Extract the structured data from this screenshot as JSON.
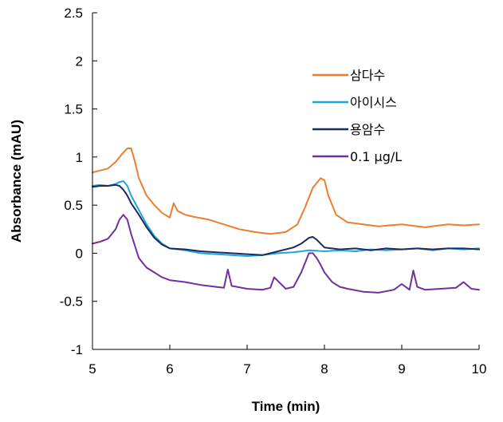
{
  "chart_data": {
    "type": "line",
    "xlabel": "Time (min)",
    "ylabel": "Absorbance (mAU)",
    "xlim": [
      5,
      10
    ],
    "ylim": [
      -1,
      2.5
    ],
    "xticks": [
      5,
      6,
      7,
      8,
      9,
      10
    ],
    "yticks": [
      -1,
      -0.5,
      0,
      0.5,
      1,
      1.5,
      2,
      2.5
    ],
    "xtick_labels": [
      "5",
      "6",
      "7",
      "8",
      "9",
      "10"
    ],
    "ytick_labels": [
      "-1",
      "-0.5",
      "0",
      "0.5",
      "1",
      "1.5",
      "2",
      "2.5"
    ],
    "grid": false,
    "legend_position": "top-right",
    "series": [
      {
        "name": "삼다수",
        "color": "#ED7D31",
        "x": [
          5.0,
          5.1,
          5.2,
          5.3,
          5.38,
          5.45,
          5.5,
          5.55,
          5.6,
          5.7,
          5.8,
          5.9,
          6.0,
          6.05,
          6.1,
          6.2,
          6.3,
          6.5,
          6.7,
          6.9,
          7.1,
          7.3,
          7.5,
          7.65,
          7.75,
          7.85,
          7.95,
          8.0,
          8.05,
          8.15,
          8.3,
          8.5,
          8.7,
          9.0,
          9.3,
          9.6,
          9.8,
          10.0
        ],
        "y": [
          0.84,
          0.86,
          0.88,
          0.95,
          1.03,
          1.09,
          1.09,
          0.95,
          0.78,
          0.6,
          0.5,
          0.42,
          0.37,
          0.52,
          0.44,
          0.4,
          0.38,
          0.35,
          0.3,
          0.25,
          0.22,
          0.2,
          0.22,
          0.3,
          0.48,
          0.68,
          0.78,
          0.76,
          0.6,
          0.4,
          0.32,
          0.3,
          0.28,
          0.3,
          0.27,
          0.3,
          0.29,
          0.3
        ]
      },
      {
        "name": "아이시스",
        "color": "#1FA4DB",
        "x": [
          5.0,
          5.1,
          5.2,
          5.3,
          5.35,
          5.4,
          5.45,
          5.5,
          5.6,
          5.7,
          5.8,
          5.9,
          6.0,
          6.2,
          6.4,
          6.6,
          6.8,
          7.0,
          7.2,
          7.4,
          7.6,
          7.8,
          8.0,
          8.2,
          8.4,
          8.6,
          8.8,
          9.0,
          9.2,
          9.4,
          9.6,
          9.8,
          10.0
        ],
        "y": [
          0.7,
          0.71,
          0.7,
          0.72,
          0.74,
          0.75,
          0.7,
          0.6,
          0.45,
          0.3,
          0.18,
          0.1,
          0.05,
          0.03,
          0.0,
          -0.01,
          -0.02,
          -0.03,
          -0.02,
          0.0,
          0.01,
          0.03,
          0.02,
          0.03,
          0.02,
          0.04,
          0.03,
          0.04,
          0.05,
          0.03,
          0.05,
          0.04,
          0.05
        ]
      },
      {
        "name": "용암수",
        "color": "#1A2B5C",
        "x": [
          5.0,
          5.1,
          5.2,
          5.3,
          5.35,
          5.4,
          5.45,
          5.5,
          5.6,
          5.7,
          5.8,
          5.9,
          6.0,
          6.2,
          6.4,
          6.6,
          6.8,
          7.0,
          7.2,
          7.4,
          7.6,
          7.7,
          7.8,
          7.85,
          7.9,
          7.95,
          8.0,
          8.2,
          8.4,
          8.6,
          8.8,
          9.0,
          9.2,
          9.4,
          9.6,
          9.8,
          10.0
        ],
        "y": [
          0.69,
          0.7,
          0.7,
          0.71,
          0.7,
          0.66,
          0.6,
          0.52,
          0.4,
          0.27,
          0.16,
          0.09,
          0.05,
          0.04,
          0.02,
          0.01,
          0.0,
          -0.01,
          -0.02,
          0.02,
          0.06,
          0.1,
          0.16,
          0.17,
          0.14,
          0.1,
          0.06,
          0.04,
          0.05,
          0.03,
          0.05,
          0.04,
          0.05,
          0.04,
          0.05,
          0.05,
          0.04
        ]
      },
      {
        "name": "0.1 μg/L",
        "color": "#7030A0",
        "x": [
          5.0,
          5.1,
          5.2,
          5.3,
          5.35,
          5.4,
          5.45,
          5.5,
          5.6,
          5.7,
          5.8,
          5.9,
          6.0,
          6.2,
          6.4,
          6.6,
          6.7,
          6.75,
          6.8,
          7.0,
          7.2,
          7.3,
          7.35,
          7.5,
          7.6,
          7.7,
          7.8,
          7.85,
          7.9,
          7.95,
          8.0,
          8.1,
          8.2,
          8.3,
          8.5,
          8.7,
          8.9,
          9.0,
          9.1,
          9.15,
          9.2,
          9.3,
          9.5,
          9.7,
          9.8,
          9.9,
          10.0
        ],
        "y": [
          0.1,
          0.12,
          0.15,
          0.25,
          0.35,
          0.4,
          0.35,
          0.2,
          -0.05,
          -0.15,
          -0.2,
          -0.25,
          -0.28,
          -0.3,
          -0.33,
          -0.35,
          -0.36,
          -0.17,
          -0.34,
          -0.37,
          -0.38,
          -0.36,
          -0.25,
          -0.37,
          -0.35,
          -0.2,
          0.0,
          0.0,
          -0.05,
          -0.12,
          -0.2,
          -0.3,
          -0.35,
          -0.37,
          -0.4,
          -0.41,
          -0.38,
          -0.32,
          -0.38,
          -0.18,
          -0.35,
          -0.38,
          -0.37,
          -0.36,
          -0.3,
          -0.37,
          -0.38
        ]
      }
    ]
  }
}
